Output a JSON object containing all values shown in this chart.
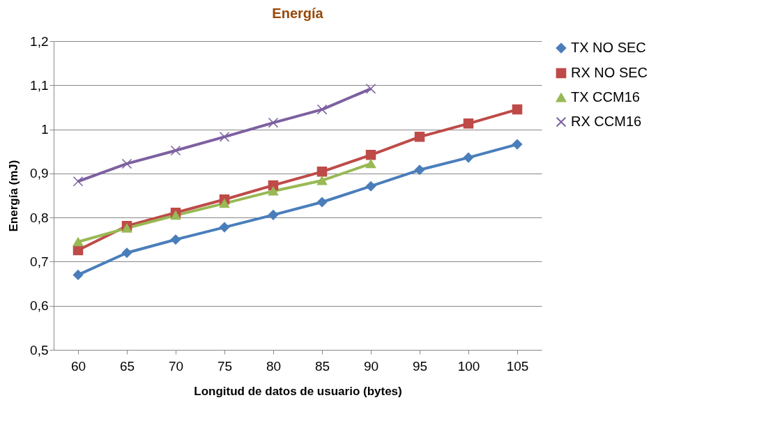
{
  "chart_data": {
    "type": "line",
    "title": "Energía",
    "xlabel": "Longitud de datos de usuario (bytes)",
    "ylabel": "Energía (mJ)",
    "categories": [
      "60",
      "65",
      "70",
      "75",
      "80",
      "85",
      "90",
      "95",
      "100",
      "105"
    ],
    "series": [
      {
        "name": "TX NO SEC",
        "color": "#4a7ebb",
        "marker": "diamond",
        "values": [
          0.67,
          0.72,
          0.75,
          0.778,
          0.806,
          0.835,
          0.871,
          0.908,
          0.936,
          0.966
        ]
      },
      {
        "name": "RX NO SEC",
        "color": "#be4b48",
        "marker": "square",
        "values": [
          0.726,
          0.781,
          0.811,
          0.841,
          0.873,
          0.904,
          0.942,
          0.983,
          1.013,
          1.045
        ]
      },
      {
        "name": "TX CCM16",
        "color": "#98b954",
        "marker": "triangle",
        "values": [
          0.745,
          0.776,
          0.805,
          0.832,
          0.86,
          0.884,
          0.922,
          null,
          null,
          null
        ]
      },
      {
        "name": "RX CCM16",
        "color": "#7d60a0",
        "marker": "cross",
        "values": [
          0.882,
          0.922,
          0.952,
          0.983,
          1.015,
          1.045,
          1.092,
          null,
          null,
          null
        ]
      }
    ],
    "ylim": [
      0.5,
      1.2
    ],
    "yticks": [
      {
        "value": 0.5,
        "label": "0,5"
      },
      {
        "value": 0.6,
        "label": "0,6"
      },
      {
        "value": 0.7,
        "label": "0,7"
      },
      {
        "value": 0.8,
        "label": "0,8"
      },
      {
        "value": 0.9,
        "label": "0,9"
      },
      1,
      {
        "value": 1.1,
        "label": "1,1"
      },
      {
        "value": 1.2,
        "label": "1,2"
      }
    ],
    "grid": "y",
    "legend": "right",
    "line_style": "solid"
  }
}
